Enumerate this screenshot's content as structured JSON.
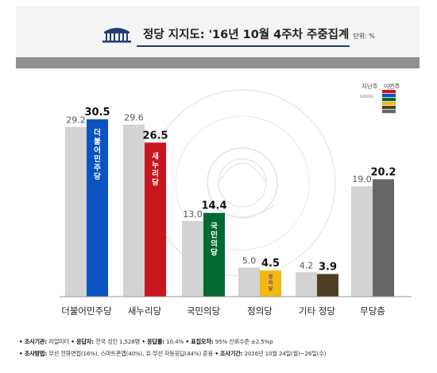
{
  "header": {
    "title": "정당 지지도: '16년 10월 4주차 주중집계",
    "unit": "단위: %"
  },
  "legend": {
    "prev_label": "지난주",
    "curr_label": "이번주"
  },
  "colors": {
    "prev": "#d3d3d3",
    "minjoo": "#0b53c1",
    "saenuri": "#c8161e",
    "kukmin": "#016931",
    "justice": "#f2b90c",
    "other": "#4e3f24",
    "none": "#666666",
    "legend_stack": [
      "#c8161e",
      "#0b53c1",
      "#016931",
      "#f2b90c",
      "#4e3f24",
      "#666666"
    ]
  },
  "chart_data": {
    "type": "bar",
    "title": "정당 지지도: '16년 10월 4주차 주중집계",
    "unit": "%",
    "categories": [
      "더불어민주당",
      "새누리당",
      "국민의당",
      "정의당",
      "기타 정당",
      "무당층"
    ],
    "series": [
      {
        "name": "지난주",
        "values": [
          29.2,
          29.6,
          13.0,
          5.0,
          4.2,
          19.0
        ]
      },
      {
        "name": "이번주",
        "values": [
          30.5,
          26.5,
          14.4,
          4.5,
          3.9,
          20.2
        ]
      }
    ],
    "bar_logos": [
      "더불어민주당",
      "새누리당",
      "국민의당",
      "정의당",
      "",
      ""
    ],
    "ylim": [
      0,
      35
    ],
    "grid": false,
    "legend_position": "top-right"
  },
  "footnote": {
    "line1": [
      {
        "label": "조사기관",
        "text": "리얼미터"
      },
      {
        "label": "응답자",
        "text": "전국 성인 1,528명"
      },
      {
        "label": "응답률",
        "text": "10.4%"
      },
      {
        "label": "표집오차",
        "text": "95% 신뢰수준 ±2.5%p"
      }
    ],
    "line2": [
      {
        "label": "조사방법",
        "text": "무선 전화면접(16%), 스마트폰앱(40%), 유·무선 자동응답(44%) 혼용"
      },
      {
        "label": "조사기간",
        "text": "2016년 10월 24일(월)~26일(수)"
      }
    ]
  }
}
